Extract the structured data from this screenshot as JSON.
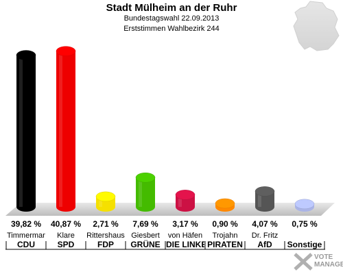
{
  "header": {
    "title": "Stadt Mülheim an der Ruhr",
    "subtitle1": "Bundestagswahl 22.09.2013",
    "subtitle2": "Erststimmen Wahlbezirk 244"
  },
  "logo": {
    "line1": "VOTE",
    "line2": "MANAGER"
  },
  "chart_data": {
    "type": "bar",
    "title": "Stadt Mülheim an der Ruhr",
    "subtitle": "Bundestagswahl 22.09.2013 / Erststimmen Wahlbezirk 244",
    "xlabel": "",
    "ylabel": "",
    "ylim": [
      0,
      41
    ],
    "grid": false,
    "categories": [
      "CDU",
      "SPD",
      "FDP",
      "GRÜNE",
      "DIE LINKE",
      "PIRATEN",
      "AfD",
      "Sonstige"
    ],
    "candidates": [
      "Timmermann",
      "Klare",
      "Rittershaus",
      "Giesbert",
      "von Häfen",
      "Trojahn",
      "Dr. Fritz",
      ""
    ],
    "values": [
      39.82,
      40.87,
      2.71,
      7.69,
      3.17,
      0.9,
      4.07,
      0.75
    ],
    "labels": [
      "39,82 %",
      "40,87 %",
      "2,71 %",
      "7,69 %",
      "3,17 %",
      "0,90 %",
      "4,07 %",
      "0,75 %"
    ],
    "colors": [
      "#000000",
      "#ee0000",
      "#f5e000",
      "#44bb00",
      "#cc1144",
      "#ff8800",
      "#555555",
      "#aab4e6"
    ]
  }
}
